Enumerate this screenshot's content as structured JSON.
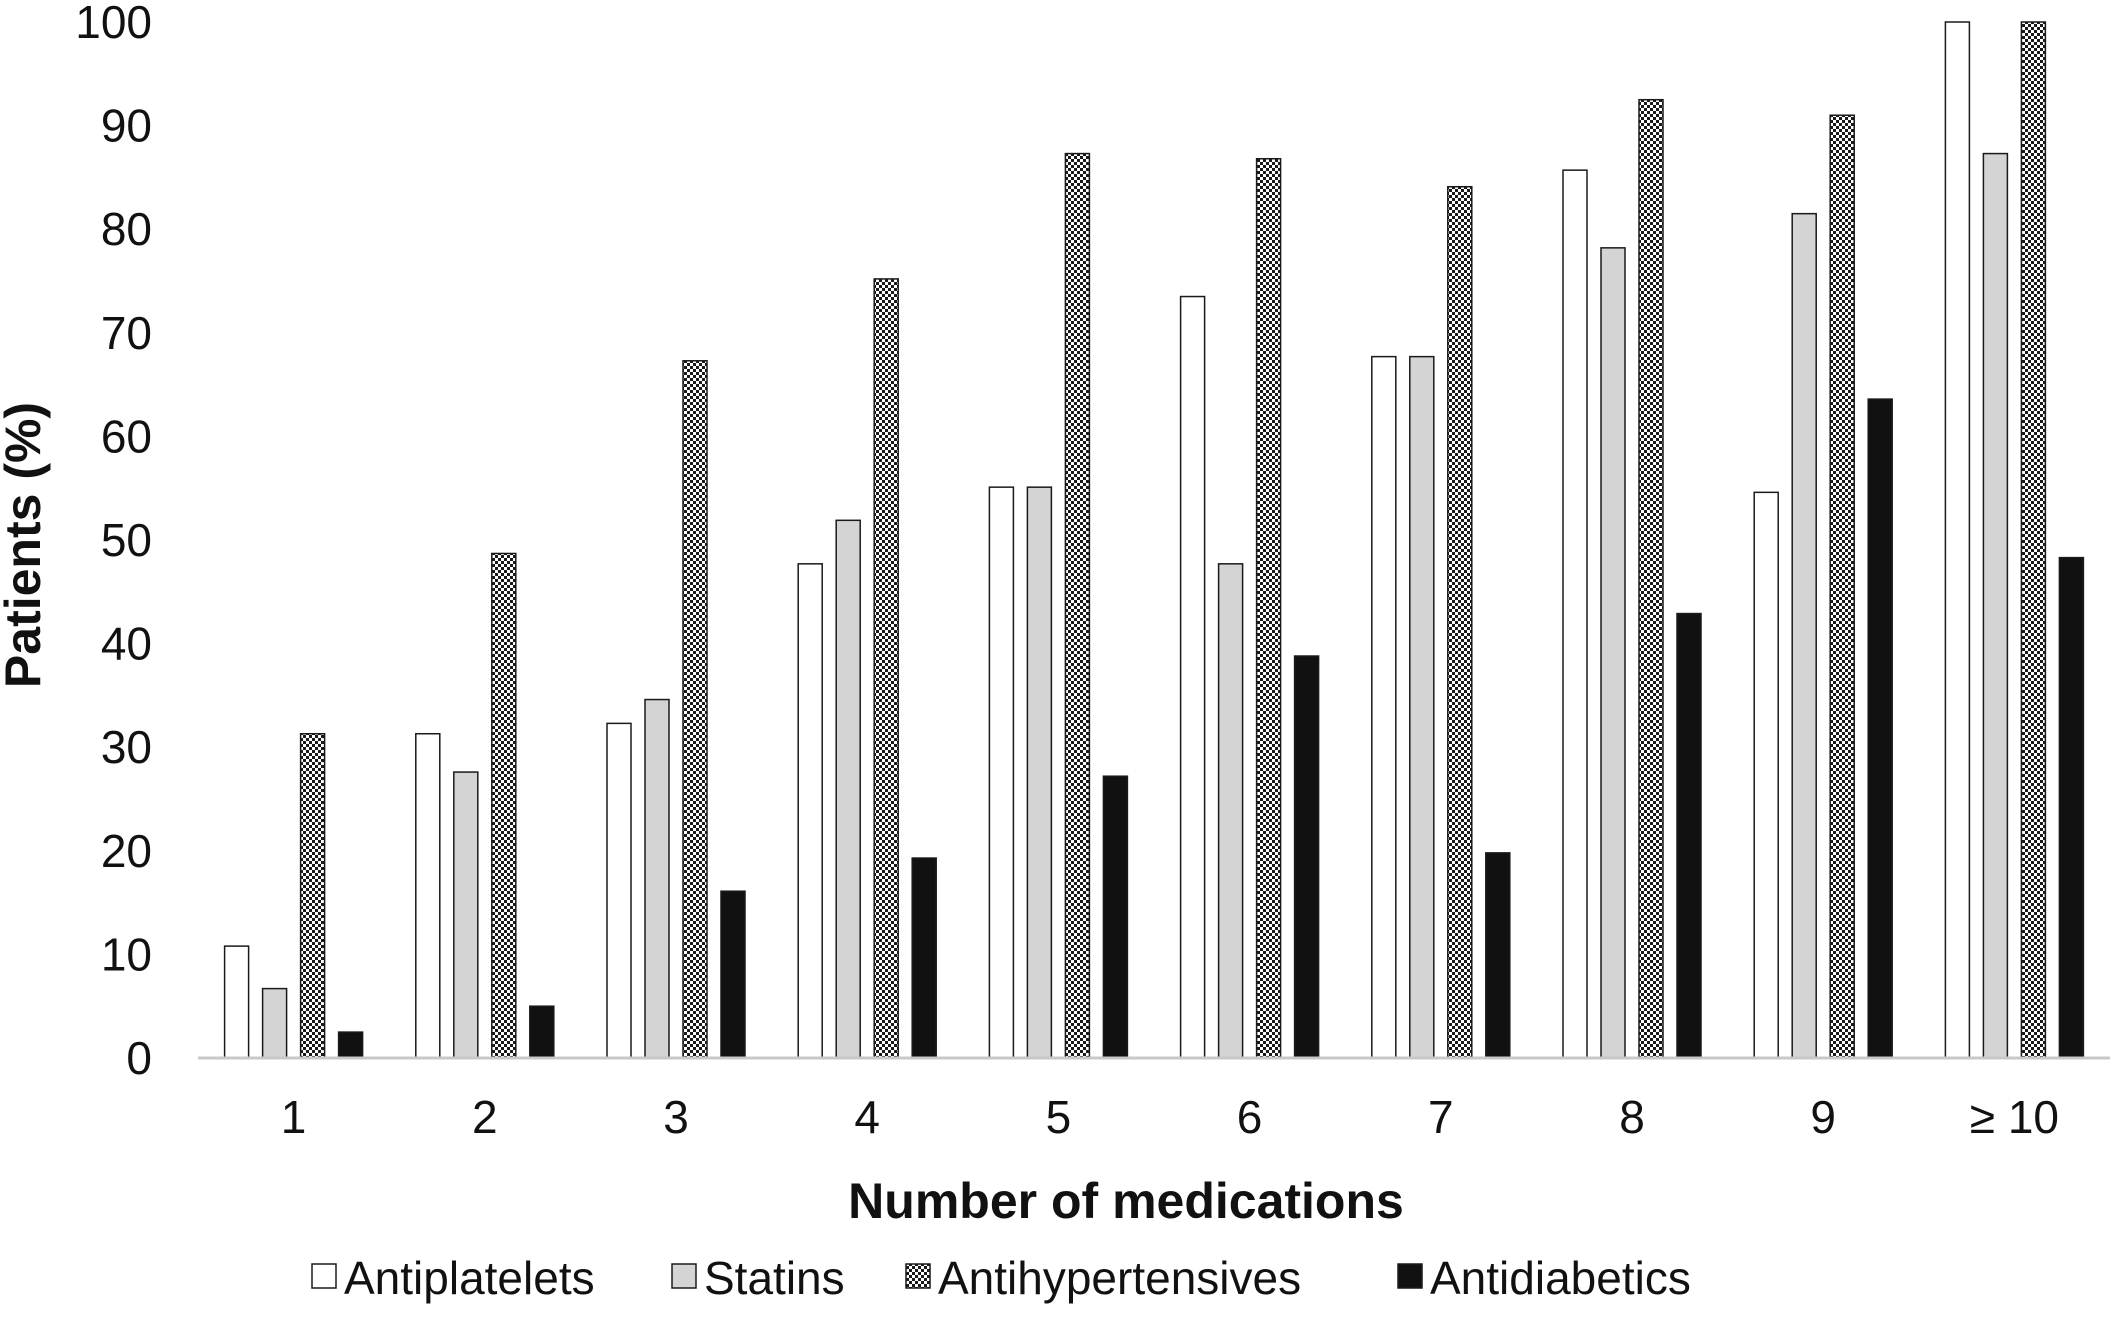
{
  "chart_data": {
    "type": "bar",
    "title": "",
    "xlabel": "Number of medications",
    "ylabel": "Patients (%)",
    "ylim": [
      0,
      100
    ],
    "yticks": [
      0,
      10,
      20,
      30,
      40,
      50,
      60,
      70,
      80,
      90,
      100
    ],
    "categories": [
      "1",
      "2",
      "3",
      "4",
      "5",
      "6",
      "7",
      "8",
      "9",
      "≥ 10"
    ],
    "legend_position": "bottom",
    "grid": false,
    "series": [
      {
        "name": "Antiplatelets",
        "fill": "#ffffff",
        "pattern": "none",
        "values": [
          10.8,
          31.3,
          32.3,
          47.7,
          55.1,
          73.5,
          67.7,
          85.7,
          54.6,
          100
        ]
      },
      {
        "name": "Statins",
        "fill": "#d4d4d4",
        "pattern": "none",
        "values": [
          6.7,
          27.6,
          34.6,
          51.9,
          55.1,
          47.7,
          67.7,
          78.2,
          81.5,
          87.3
        ]
      },
      {
        "name": "Antihypertensives",
        "fill": "#ffffff",
        "pattern": "checker",
        "values": [
          31.3,
          48.7,
          67.3,
          75.2,
          87.3,
          86.8,
          84.1,
          92.5,
          91.0,
          100
        ]
      },
      {
        "name": "Antidiabetics",
        "fill": "#111111",
        "pattern": "none",
        "values": [
          2.5,
          5.0,
          16.1,
          19.3,
          27.2,
          38.8,
          19.8,
          42.9,
          63.6,
          48.3
        ]
      }
    ]
  }
}
